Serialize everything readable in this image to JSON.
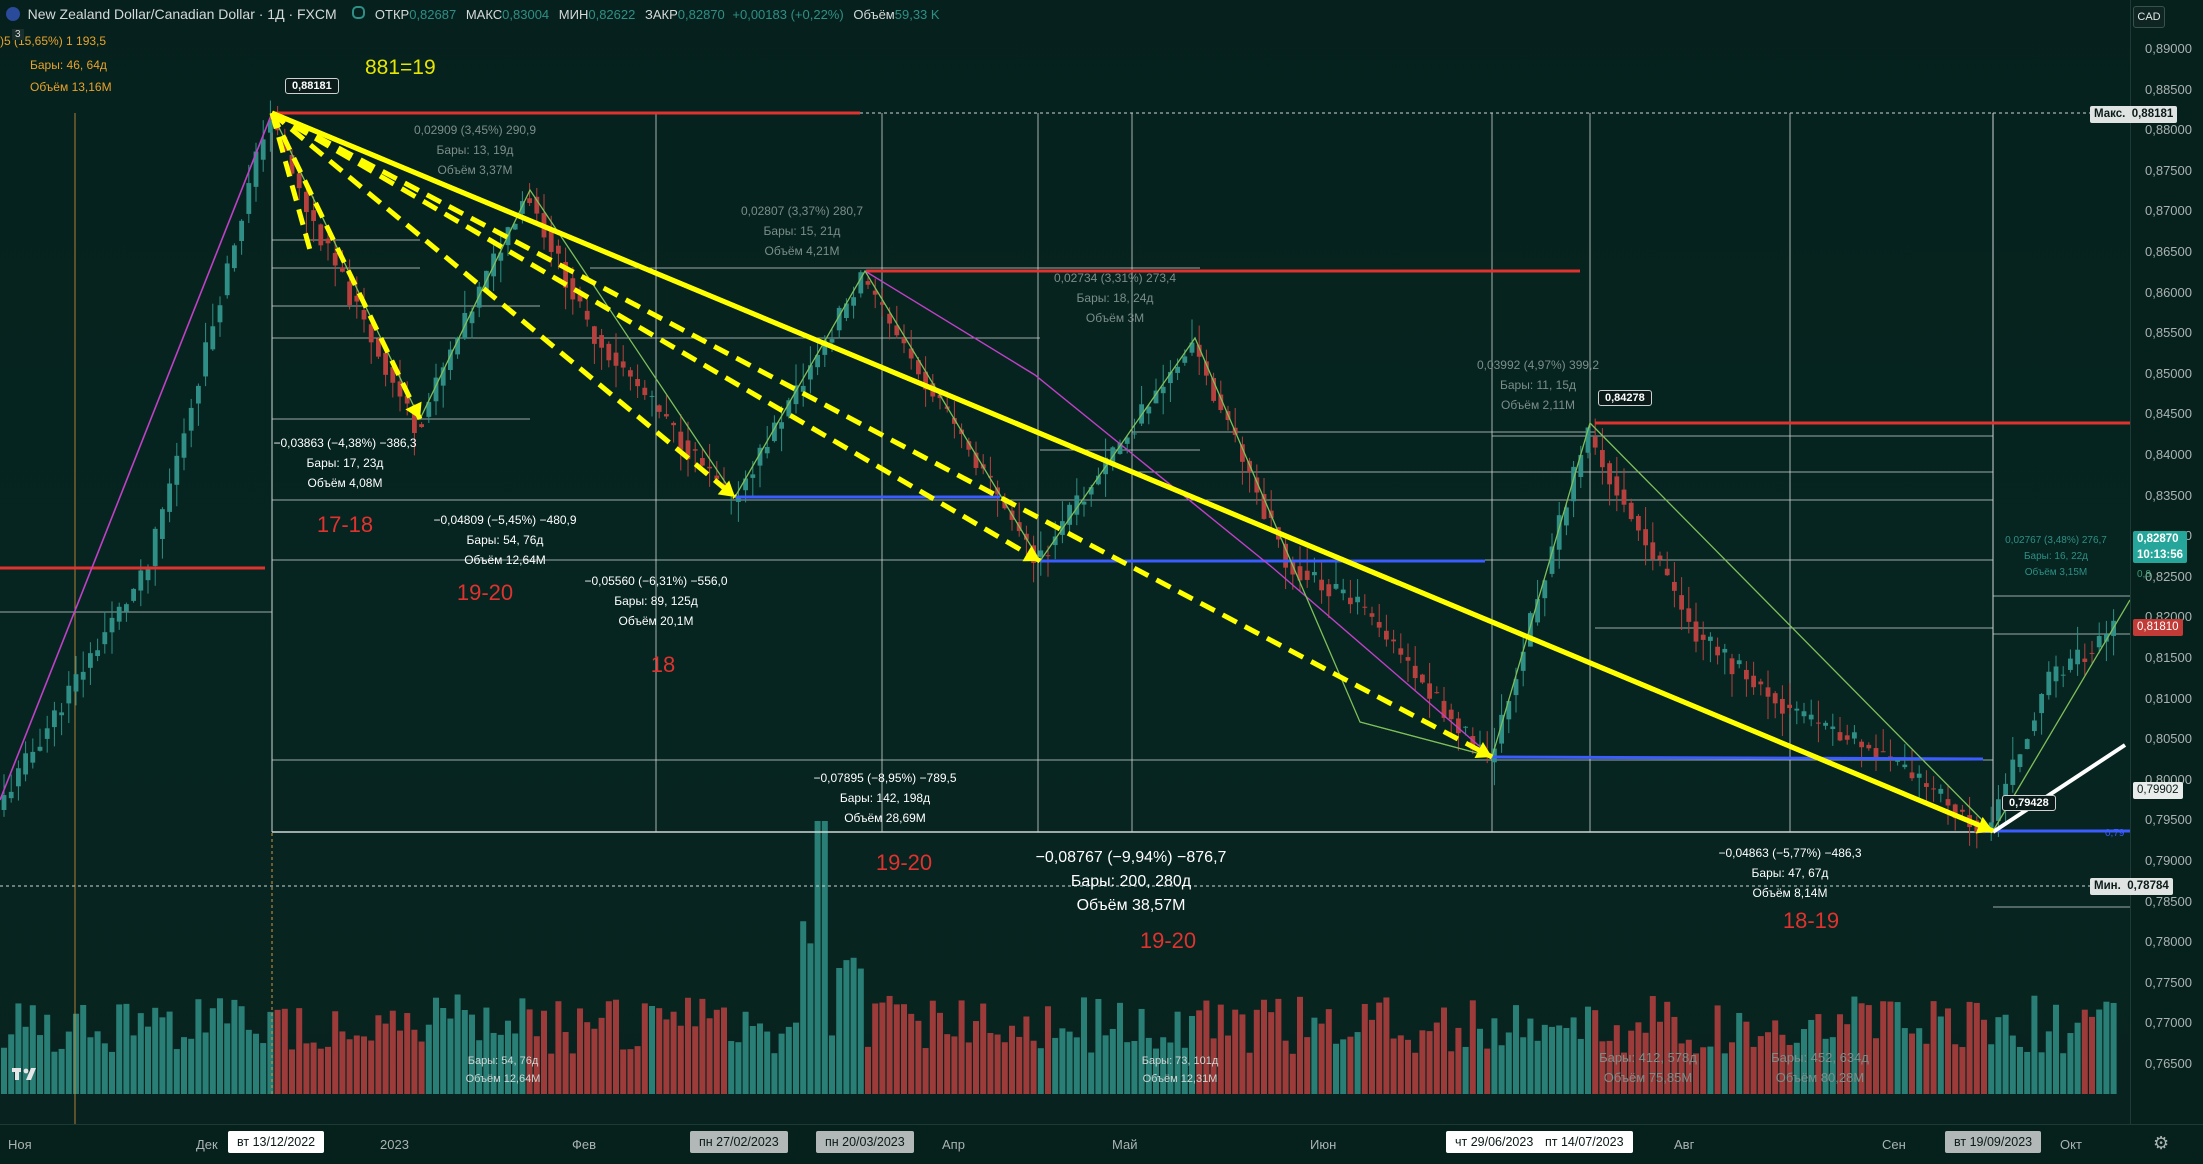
{
  "header": {
    "title": "New Zealand Dollar/Canadian Dollar · 1Д · FXCM",
    "ohlc": {
      "open_label": "ОТКР",
      "open": "0,82687",
      "high_label": "МАКС",
      "high": "0,83004",
      "low_label": "МИН",
      "low": "0,82622",
      "close_label": "ЗАКР",
      "close": "0,82870",
      "change": "+0,00183 (+0,22%)",
      "volume_label": "Объём",
      "volume": "59,33 K"
    },
    "currency_button": "CAD",
    "indicator_count": "3",
    "overlay_line1": ")5 (15,65%) 1 193,5",
    "overlay_line2": "Бары: 46, 64д",
    "overlay_line3": "Объём 13,16M"
  },
  "price_scale": {
    "ticks": [
      "0,89000",
      "0,88500",
      "0,88000",
      "0,87500",
      "0,87000",
      "0,86500",
      "0,86000",
      "0,85500",
      "0,85000",
      "0,84500",
      "0,84000",
      "0,83500",
      "0,83000",
      "0,82500",
      "0,82000",
      "0,81500",
      "0,81000",
      "0,80500",
      "0,80000",
      "0,79500",
      "0,79000",
      "0,78500",
      "0,78000",
      "0,77500",
      "0,77000",
      "0,76500"
    ],
    "max_label": "Макс.",
    "max_value": "0,88181",
    "min_label": "Мин.",
    "min_value": "0,78784",
    "current_price": "0,82870",
    "countdown": "10:13:56",
    "marker_red": "0,81810",
    "marker_white": "0,79902",
    "marker_blue": "0,79",
    "marker_green": "0,8"
  },
  "time_axis": {
    "labels": [
      "Ноя",
      "Дек",
      "2023",
      "Фев",
      "Апр",
      "Май",
      "Июн",
      "Авг",
      "Сен",
      "Окт"
    ],
    "highlighted": [
      "вт 13/12/2022",
      "пн 27/02/2023",
      "пн 20/03/2023",
      "чт 29/06/2023",
      "пт 14/07/2023",
      "вт 19/09/2023"
    ]
  },
  "chart": {
    "top_label": "881=19",
    "price_flags": {
      "high": "0,88181",
      "mid": "0,84278",
      "low": "0,79428"
    },
    "measurements": [
      {
        "l1": "0,02909 (3,45%) 290,9",
        "l2": "Бары: 13, 19д",
        "l3": "Объём 3,37M"
      },
      {
        "l1": "−0,03863 (−4,38%) −386,3",
        "l2": "Бары: 17, 23д",
        "l3": "Объём 4,08M"
      },
      {
        "l1": "−0,04809 (−5,45%) −480,9",
        "l2": "Бары: 54, 76д",
        "l3": "Объём 12,64M"
      },
      {
        "l1": "−0,05560 (−6,31%) −556,0",
        "l2": "Бары: 89, 125д",
        "l3": "Объём 20,1M"
      },
      {
        "l1": "0,02807 (3,37%) 280,7",
        "l2": "Бары: 15, 21д",
        "l3": "Объём 4,21M"
      },
      {
        "l1": "0,02734 (3,31%) 273,4",
        "l2": "Бары: 18, 24д",
        "l3": "Объём 3M"
      },
      {
        "l1": "−0,07895 (−8,95%) −789,5",
        "l2": "Бары: 142, 198д",
        "l3": "Объём 28,69M"
      },
      {
        "l1": "−0,08767 (−9,94%) −876,7",
        "l2": "Бары: 200, 280д",
        "l3": "Объём 38,57M"
      },
      {
        "l1": "0,03992 (4,97%) 399,2",
        "l2": "Бары: 11, 15д",
        "l3": "Объём 2,11M"
      },
      {
        "l1": "−0,04863 (−5,77%) −486,3",
        "l2": "Бары: 47, 67д",
        "l3": "Объём 8,14M"
      },
      {
        "l1": "0,02767 (3,48%) 276,7",
        "l2": "Бары: 16, 22д",
        "l3": "Объём 3,15M"
      }
    ],
    "volume_notes": [
      {
        "l2": "Бары: 54, 76д",
        "l3": "Объём 12,64M"
      },
      {
        "l2": "Бары: 73, 101д",
        "l3": "Объём 12,31M"
      },
      {
        "l2": "Бары: 412, 578д",
        "l3": "Объём 75,85M"
      },
      {
        "l2": "Бары: 452, 634д",
        "l3": "Объём 80,28M"
      }
    ],
    "time_tags": [
      "17-18",
      "19-20",
      "18",
      "19-20",
      "19-20",
      "18-19"
    ]
  },
  "colors": {
    "bull": "#2f8f86",
    "bear": "#b6403e",
    "arrow": "#ffff00",
    "red_line": "#e0322e",
    "blue_line": "#3b5cff",
    "zigzag": "#7fbf5a",
    "magenta": "#c040c8"
  }
}
